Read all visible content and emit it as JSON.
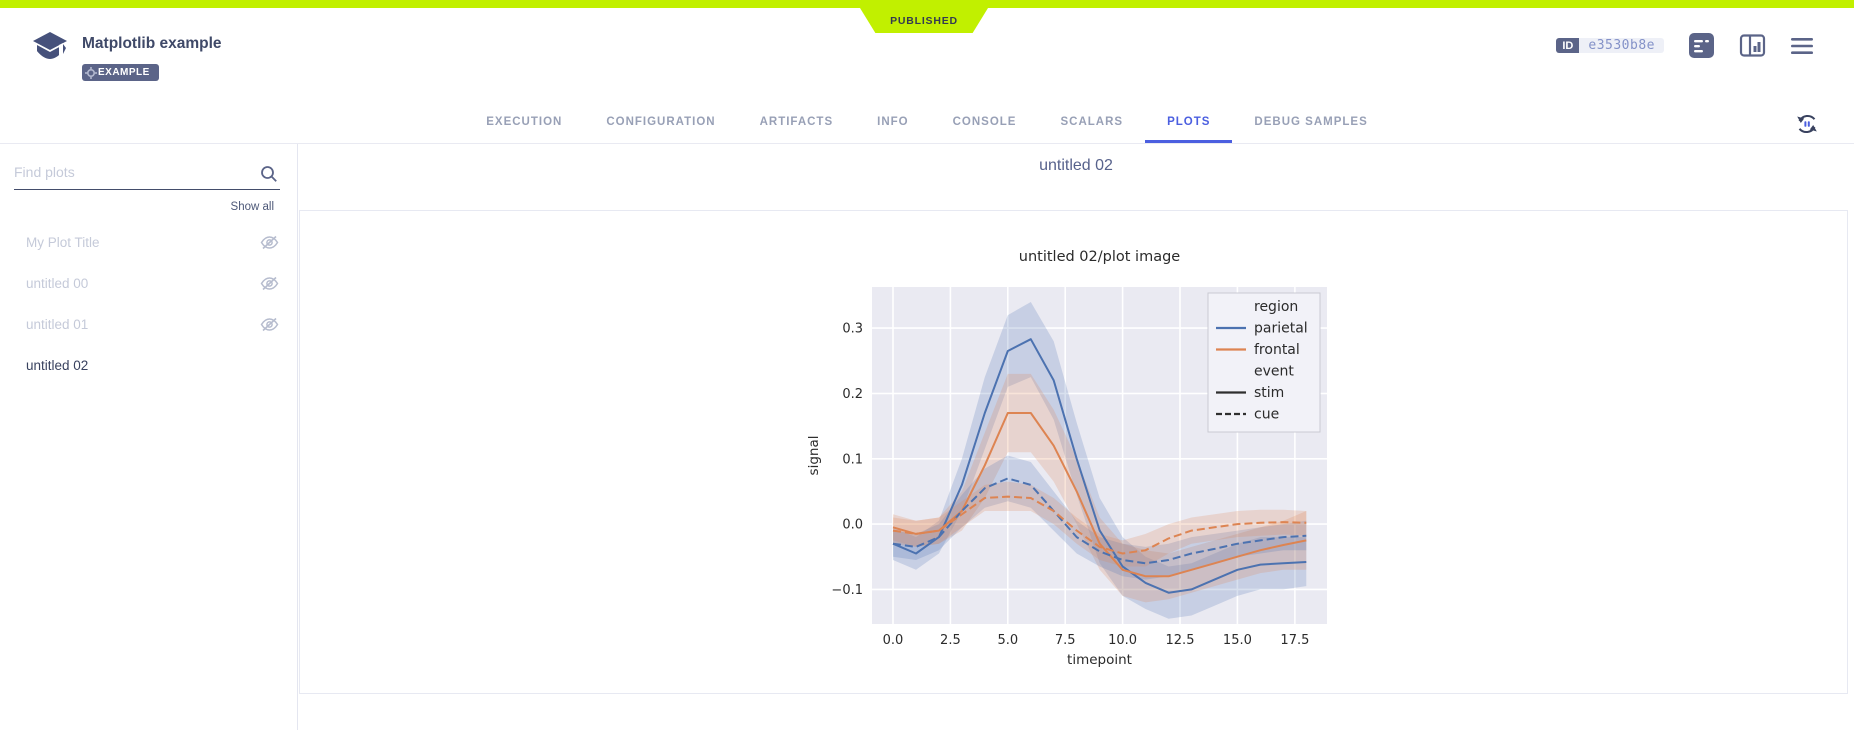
{
  "status_ribbon": "PUBLISHED",
  "header": {
    "title": "Matplotlib example",
    "badge": "EXAMPLE",
    "id_label": "ID",
    "id_value": "e3530b8e"
  },
  "tabs": [
    {
      "label": "EXECUTION",
      "active": false
    },
    {
      "label": "CONFIGURATION",
      "active": false
    },
    {
      "label": "ARTIFACTS",
      "active": false
    },
    {
      "label": "INFO",
      "active": false
    },
    {
      "label": "CONSOLE",
      "active": false
    },
    {
      "label": "SCALARS",
      "active": false
    },
    {
      "label": "PLOTS",
      "active": true
    },
    {
      "label": "DEBUG SAMPLES",
      "active": false
    }
  ],
  "sidebar": {
    "search_placeholder": "Find plots",
    "show_all": "Show all",
    "items": [
      {
        "label": "My Plot Title",
        "visible": false,
        "selected": false
      },
      {
        "label": "untitled 00",
        "visible": false,
        "selected": false
      },
      {
        "label": "untitled 01",
        "visible": false,
        "selected": false
      },
      {
        "label": "untitled 02",
        "visible": true,
        "selected": true
      }
    ]
  },
  "main": {
    "heading": "untitled 02"
  },
  "chart_data": {
    "type": "line",
    "title": "untitled 02/plot image",
    "xlabel": "timepoint",
    "ylabel": "signal",
    "xlim": [
      -0.914,
      18.9
    ],
    "ylim": [
      -0.153,
      0.363
    ],
    "xticks": [
      0,
      2.5,
      5,
      7.5,
      10,
      12.5,
      15,
      17.5
    ],
    "xtick_labels": [
      "0.0",
      "2.5",
      "5.0",
      "7.5",
      "10.0",
      "12.5",
      "15.0",
      "17.5"
    ],
    "yticks": [
      -0.1,
      0.0,
      0.1,
      0.2,
      0.3
    ],
    "ytick_labels": [
      "−0.1",
      "0.0",
      "0.1",
      "0.2",
      "0.3"
    ],
    "grid": true,
    "plot_background": "#eaeaf2",
    "grid_color": "#ffffff",
    "text_color": "#2b2b2b",
    "x": [
      0,
      1,
      2,
      3,
      4,
      5,
      6,
      7,
      8,
      9,
      10,
      11,
      12,
      13,
      14,
      15,
      16,
      17,
      18
    ],
    "series": [
      {
        "name": "parietal-stim",
        "color": "#4c72b0",
        "dash": "solid",
        "values": [
          -0.03,
          -0.045,
          -0.02,
          0.06,
          0.17,
          0.265,
          0.283,
          0.22,
          0.1,
          -0.01,
          -0.065,
          -0.09,
          -0.105,
          -0.1,
          -0.085,
          -0.07,
          -0.062,
          -0.06,
          -0.058
        ],
        "band_upper": [
          -0.005,
          -0.02,
          0.005,
          0.1,
          0.225,
          0.32,
          0.34,
          0.28,
          0.155,
          0.04,
          -0.02,
          -0.05,
          -0.065,
          -0.06,
          -0.045,
          -0.03,
          -0.02,
          -0.02,
          -0.02
        ],
        "band_lower": [
          -0.055,
          -0.07,
          -0.045,
          0.02,
          0.115,
          0.21,
          0.225,
          0.16,
          0.045,
          -0.06,
          -0.11,
          -0.13,
          -0.145,
          -0.14,
          -0.125,
          -0.11,
          -0.1,
          -0.1,
          -0.095
        ]
      },
      {
        "name": "frontal-stim",
        "color": "#dd8452",
        "dash": "solid",
        "values": [
          -0.005,
          -0.015,
          -0.01,
          0.02,
          0.09,
          0.17,
          0.17,
          0.12,
          0.05,
          -0.03,
          -0.07,
          -0.08,
          -0.08,
          -0.07,
          -0.06,
          -0.05,
          -0.04,
          -0.032,
          -0.025
        ],
        "band_upper": [
          0.015,
          0.005,
          0.01,
          0.05,
          0.14,
          0.23,
          0.23,
          0.175,
          0.1,
          0.01,
          -0.03,
          -0.04,
          -0.045,
          -0.035,
          -0.025,
          -0.015,
          -0.005,
          0.005,
          0.02
        ],
        "band_lower": [
          -0.025,
          -0.035,
          -0.03,
          -0.01,
          0.04,
          0.11,
          0.11,
          0.065,
          0.0,
          -0.07,
          -0.11,
          -0.12,
          -0.115,
          -0.105,
          -0.095,
          -0.085,
          -0.075,
          -0.07,
          -0.07
        ]
      },
      {
        "name": "parietal-cue",
        "color": "#4c72b0",
        "dash": "dashed",
        "values": [
          -0.03,
          -0.035,
          -0.02,
          0.02,
          0.055,
          0.07,
          0.06,
          0.02,
          -0.02,
          -0.042,
          -0.055,
          -0.06,
          -0.055,
          -0.045,
          -0.038,
          -0.03,
          -0.025,
          -0.02,
          -0.018
        ],
        "band_upper": [
          -0.01,
          -0.015,
          0.0,
          0.045,
          0.085,
          0.105,
          0.095,
          0.05,
          0.005,
          -0.02,
          -0.03,
          -0.035,
          -0.03,
          -0.02,
          -0.015,
          -0.01,
          -0.005,
          0.0,
          0.005
        ],
        "band_lower": [
          -0.05,
          -0.055,
          -0.04,
          -0.005,
          0.025,
          0.035,
          0.025,
          -0.01,
          -0.045,
          -0.065,
          -0.08,
          -0.085,
          -0.08,
          -0.07,
          -0.06,
          -0.05,
          -0.045,
          -0.04,
          -0.04
        ]
      },
      {
        "name": "frontal-cue",
        "color": "#dd8452",
        "dash": "dashed",
        "values": [
          -0.01,
          -0.015,
          -0.01,
          0.015,
          0.04,
          0.042,
          0.04,
          0.02,
          -0.01,
          -0.035,
          -0.045,
          -0.04,
          -0.022,
          -0.01,
          -0.005,
          0.0,
          0.002,
          0.003,
          0.002
        ],
        "band_upper": [
          0.01,
          0.005,
          0.01,
          0.035,
          0.06,
          0.065,
          0.06,
          0.04,
          0.01,
          -0.015,
          -0.025,
          -0.015,
          0.0,
          0.01,
          0.015,
          0.02,
          0.022,
          0.022,
          0.02
        ],
        "band_lower": [
          -0.03,
          -0.035,
          -0.03,
          -0.005,
          0.02,
          0.02,
          0.02,
          0.0,
          -0.03,
          -0.055,
          -0.065,
          -0.065,
          -0.045,
          -0.03,
          -0.025,
          -0.02,
          -0.018,
          -0.016,
          -0.018
        ]
      }
    ],
    "legend": {
      "position": "upper right",
      "entries": [
        {
          "label": "region",
          "type": "title"
        },
        {
          "label": "parietal",
          "type": "line",
          "color": "#4c72b0",
          "dash": "solid"
        },
        {
          "label": "frontal",
          "type": "line",
          "color": "#dd8452",
          "dash": "solid"
        },
        {
          "label": "event",
          "type": "title"
        },
        {
          "label": "stim",
          "type": "line",
          "color": "#2f2f2f",
          "dash": "solid"
        },
        {
          "label": "cue",
          "type": "line",
          "color": "#2f2f2f",
          "dash": "dashed"
        }
      ]
    }
  }
}
